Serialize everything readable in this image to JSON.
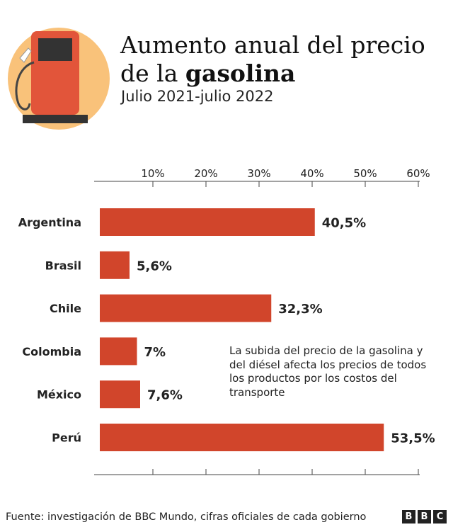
{
  "header": {
    "title_line1": "Aumento anual del precio",
    "title_line2_prefix": "de la ",
    "title_line2_bold": "gasolina",
    "subtitle": "Julio 2021-julio 2022"
  },
  "icon": "gas-pump-icon",
  "chart_data": {
    "type": "bar",
    "orientation": "horizontal",
    "categories": [
      "Argentina",
      "Brasil",
      "Chile",
      "Colombia",
      "México",
      "Perú"
    ],
    "values": [
      40.5,
      5.6,
      32.3,
      7,
      7.6,
      53.5
    ],
    "value_labels": [
      "40,5%",
      "5,6%",
      "32,3%",
      "7%",
      "7,6%",
      "53,5%"
    ],
    "title": "",
    "xlabel": "",
    "ylabel": "",
    "xlim": [
      0,
      60
    ],
    "xticks": [
      10,
      20,
      30,
      40,
      50,
      60
    ],
    "xtick_labels": [
      "10%",
      "20%",
      "30%",
      "40%",
      "50%",
      "60%"
    ],
    "axis_position": "top and bottom",
    "grid": false,
    "legend": "none"
  },
  "annotation": "La subida del precio de la gasolina y del diésel afecta los precios de todos los productos por los costos del transporte",
  "footer": {
    "source": "Fuente: investigación de BBC Mundo, cifras oficiales de cada gobierno",
    "logo_letters": [
      "B",
      "B",
      "C"
    ]
  },
  "colors": {
    "bar": "#d1452b",
    "pump": "#e2553a",
    "pump_circle": "#f9c27a",
    "text": "#222222"
  }
}
